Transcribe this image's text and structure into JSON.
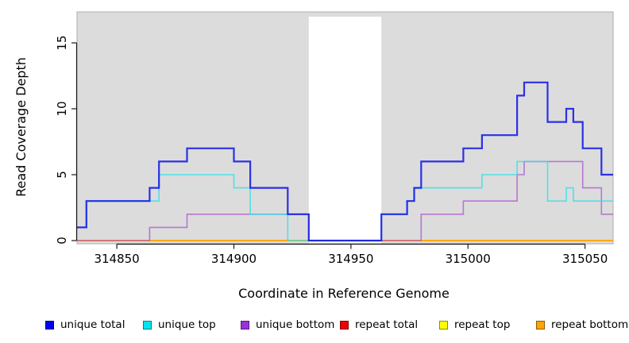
{
  "chart_data": {
    "type": "line",
    "subtype": "step-post",
    "title": "",
    "xlabel": "Coordinate in Reference Genome",
    "ylabel": "Read Coverage Depth",
    "xlim": [
      314833,
      315062
    ],
    "ylim": [
      0,
      17.3
    ],
    "x_ticks": [
      314850,
      314900,
      314950,
      315000,
      315050
    ],
    "y_ticks": [
      0,
      5,
      10,
      15
    ],
    "grid": false,
    "panel_background": "#DCDCDC",
    "panel_border_color": "#ADADAD",
    "masked_region": {
      "x_start": 314932,
      "x_end": 314963,
      "color": "#FFFFFF"
    },
    "legend_position": "bottom",
    "series": [
      {
        "name": "repeat total",
        "color": "#DC1414",
        "opacity": 1.0,
        "width": 1.5,
        "points": [
          [
            314833,
            0
          ],
          [
            315062,
            0
          ]
        ]
      },
      {
        "name": "repeat top",
        "color": "#FFFF00",
        "opacity": 1.0,
        "width": 1.5,
        "points": [
          [
            314833,
            0
          ],
          [
            315062,
            0
          ]
        ]
      },
      {
        "name": "repeat bottom",
        "color": "#FFA500",
        "opacity": 1.0,
        "width": 1.8,
        "points": [
          [
            314833,
            0
          ],
          [
            315062,
            0
          ]
        ]
      },
      {
        "name": "unique bottom",
        "color": "#A94FD0",
        "opacity": 0.72,
        "width": 1.6,
        "points": [
          [
            314833,
            0
          ],
          [
            314864,
            1
          ],
          [
            314880,
            2
          ],
          [
            314932,
            0
          ],
          [
            314980,
            2
          ],
          [
            314998,
            3
          ],
          [
            315021,
            5
          ],
          [
            315024,
            6
          ],
          [
            315049,
            4
          ],
          [
            315057,
            2
          ],
          [
            315062,
            2
          ]
        ]
      },
      {
        "name": "unique top",
        "color": "#30E1E8",
        "opacity": 0.8,
        "width": 1.6,
        "points": [
          [
            314833,
            1
          ],
          [
            314837,
            3
          ],
          [
            314868,
            5
          ],
          [
            314900,
            4
          ],
          [
            314907,
            2
          ],
          [
            314923,
            0
          ],
          [
            314963,
            2
          ],
          [
            314974,
            3
          ],
          [
            314977,
            4
          ],
          [
            315006,
            5
          ],
          [
            315021,
            6
          ],
          [
            315034,
            3
          ],
          [
            315042,
            4
          ],
          [
            315045,
            3
          ],
          [
            315062,
            3
          ]
        ]
      },
      {
        "name": "unique total",
        "color": "#1518E6",
        "opacity": 0.88,
        "width": 2.2,
        "points": [
          [
            314833,
            1
          ],
          [
            314837,
            3
          ],
          [
            314864,
            4
          ],
          [
            314868,
            6
          ],
          [
            314880,
            7
          ],
          [
            314900,
            6
          ],
          [
            314907,
            4
          ],
          [
            314923,
            2
          ],
          [
            314932,
            0
          ],
          [
            314963,
            2
          ],
          [
            314974,
            3
          ],
          [
            314977,
            4
          ],
          [
            314980,
            6
          ],
          [
            314998,
            7
          ],
          [
            315006,
            8
          ],
          [
            315021,
            11
          ],
          [
            315024,
            12
          ],
          [
            315034,
            9
          ],
          [
            315042,
            10
          ],
          [
            315045,
            9
          ],
          [
            315049,
            7
          ],
          [
            315057,
            5
          ],
          [
            315062,
            5
          ]
        ]
      }
    ],
    "legend_items": [
      {
        "label": "unique total",
        "fill": "#0000EE"
      },
      {
        "label": "unique top",
        "fill": "#00E5EE"
      },
      {
        "label": "unique bottom",
        "fill": "#9B30DA"
      },
      {
        "label": "repeat total",
        "fill": "#EE0000"
      },
      {
        "label": "repeat top",
        "fill": "#FFFF00"
      },
      {
        "label": "repeat bottom",
        "fill": "#FFA500"
      }
    ]
  }
}
